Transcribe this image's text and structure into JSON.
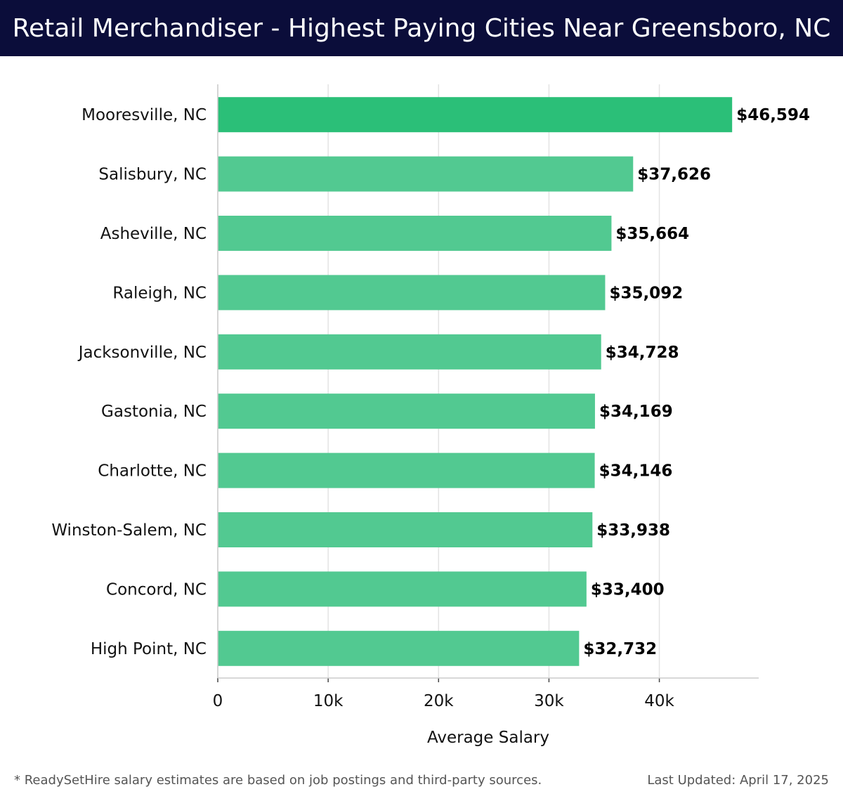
{
  "header": {
    "title": "Retail Merchandiser - Highest Paying Cities Near Greensboro, NC"
  },
  "colors": {
    "header_bg": "#0b0d3a",
    "bar_highlight": "#2bbf78",
    "bar": "#52c991",
    "grid": "#e3e3e3"
  },
  "chart_data": {
    "type": "bar",
    "orientation": "horizontal",
    "title": "Retail Merchandiser - Highest Paying Cities Near Greensboro, NC",
    "xlabel": "Average Salary",
    "ylabel": "",
    "categories": [
      "Mooresville, NC",
      "Salisbury, NC",
      "Asheville, NC",
      "Raleigh, NC",
      "Jacksonville, NC",
      "Gastonia, NC",
      "Charlotte, NC",
      "Winston-Salem, NC",
      "Concord, NC",
      "High Point, NC"
    ],
    "values": [
      46594,
      37626,
      35664,
      35092,
      34728,
      34169,
      34146,
      33938,
      33400,
      32732
    ],
    "value_labels": [
      "$46,594",
      "$37,626",
      "$35,664",
      "$35,092",
      "$34,728",
      "$34,169",
      "$34,146",
      "$33,938",
      "$33,400",
      "$32,732"
    ],
    "xlim": [
      0,
      49000
    ],
    "xticks": [
      0,
      10000,
      20000,
      30000,
      40000
    ],
    "xtick_labels": [
      "0",
      "10k",
      "20k",
      "30k",
      "40k"
    ],
    "grid": true,
    "highlight_index": 0
  },
  "footer": {
    "note": "* ReadySetHire salary estimates are based on job postings and third-party sources.",
    "updated": "Last Updated: April 17, 2025"
  }
}
